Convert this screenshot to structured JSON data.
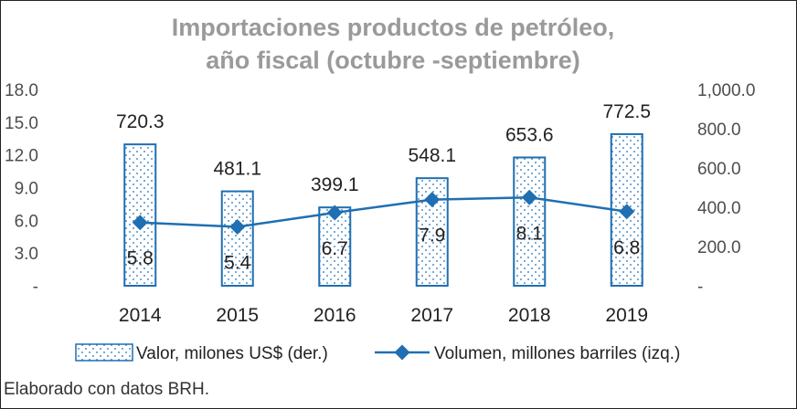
{
  "chart_data": {
    "type": "bar",
    "title_line1": "Importaciones productos de petróleo,",
    "title_line2": "año fiscal (octubre -septiembre)",
    "categories": [
      "2014",
      "2015",
      "2016",
      "2017",
      "2018",
      "2019"
    ],
    "series": [
      {
        "name": "Valor, milones US$ (der.)",
        "type": "bar",
        "axis": "right",
        "values": [
          720.3,
          481.1,
          399.1,
          548.1,
          653.6,
          772.5
        ],
        "labels": [
          "720.3",
          "481.1",
          "399.1",
          "548.1",
          "653.6",
          "772.5"
        ],
        "color": "#1f6fb2"
      },
      {
        "name": "Volumen, millones barriles (izq.)",
        "type": "line",
        "axis": "left",
        "values": [
          5.8,
          5.4,
          6.7,
          7.9,
          8.1,
          6.8
        ],
        "labels": [
          "5.8",
          "5.4",
          "6.7",
          "7.9",
          "8.1",
          "6.8"
        ],
        "color": "#1f6fb2"
      }
    ],
    "y_left": {
      "ticks": [
        "-",
        "3.0",
        "6.0",
        "9.0",
        "12.0",
        "15.0",
        "18.0"
      ],
      "ylim": [
        0,
        18
      ]
    },
    "y_right": {
      "ticks": [
        "-",
        "200.0",
        "400.0",
        "600.0",
        "800.0",
        "1,000.0"
      ],
      "ylim": [
        0,
        1000
      ]
    },
    "grid": false,
    "legend": "bottom"
  },
  "source_note": "Elaborado con datos BRH."
}
